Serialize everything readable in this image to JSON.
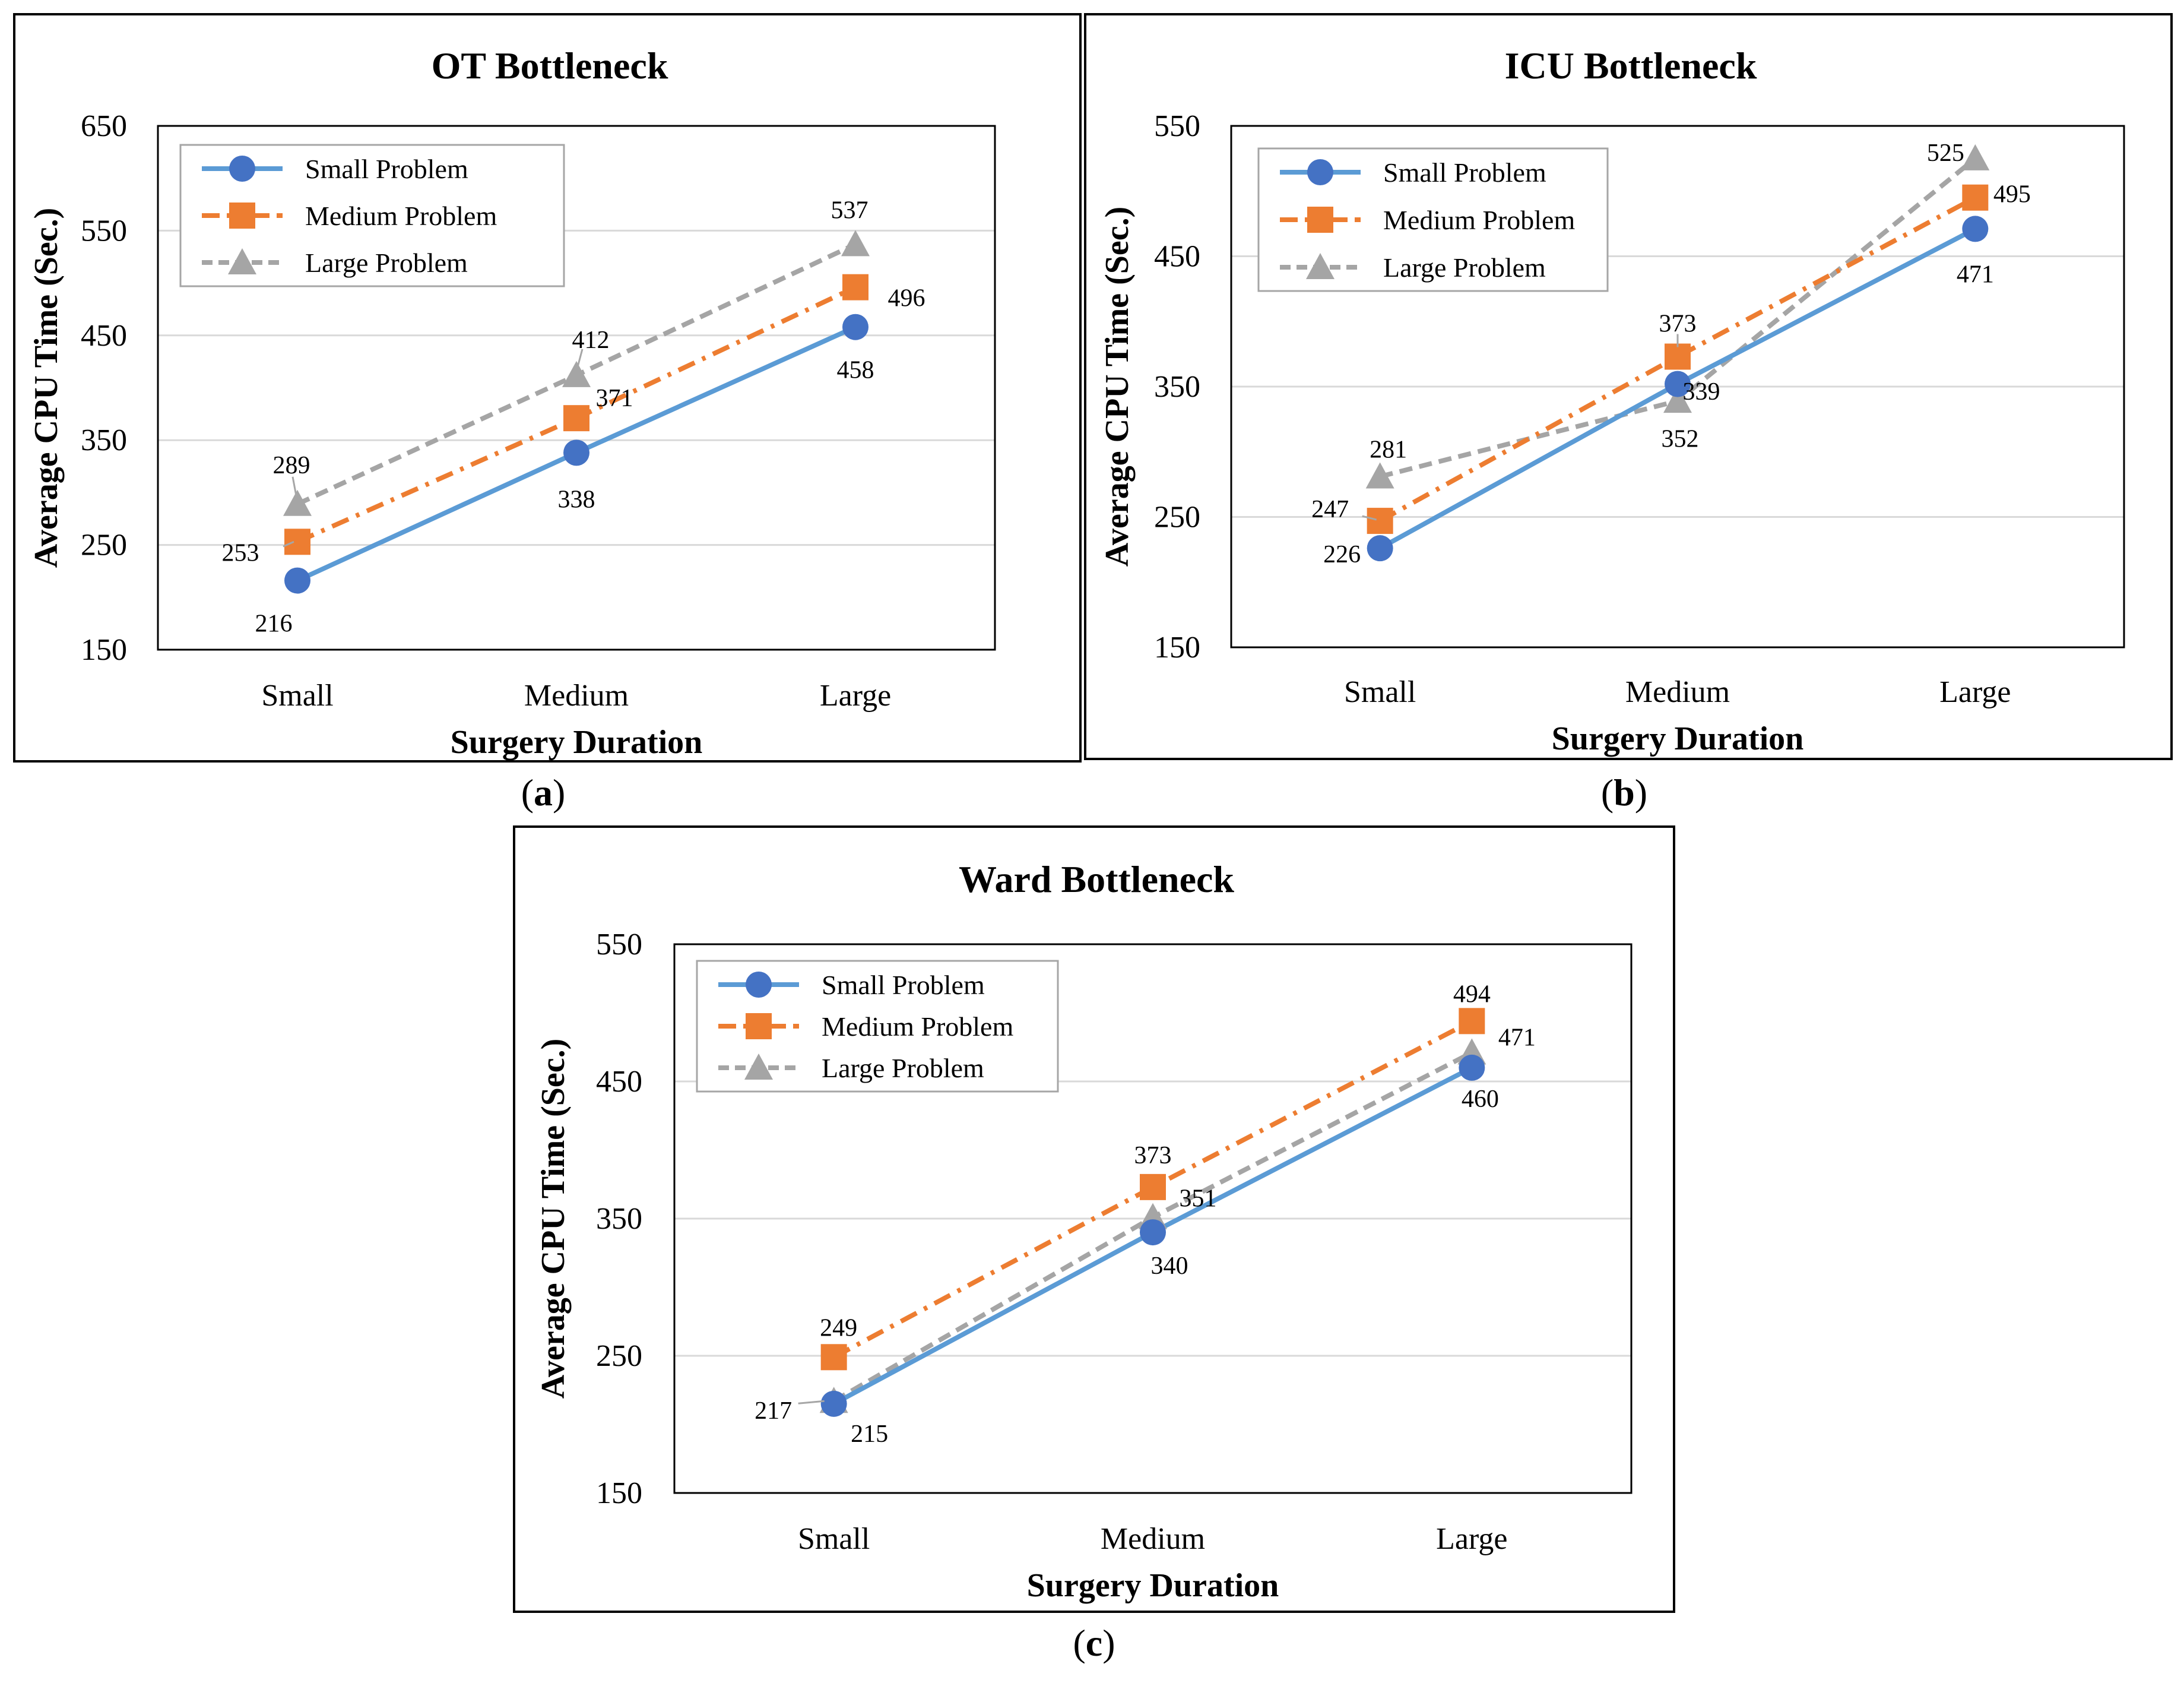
{
  "captions": [
    "(a)",
    "(b)",
    "(c)"
  ],
  "caption_letters": [
    "a",
    "b",
    "c"
  ],
  "colors": {
    "small": "#4472C4",
    "small_line": "#5B9BD5",
    "medium": "#ED7D31",
    "large": "#A5A5A5",
    "grid": "#D9D9D9"
  },
  "chart_data": [
    {
      "type": "line",
      "title": "OT Bottleneck",
      "xlabel": "Surgery Duration",
      "ylabel": "Average CPU Time (Sec.)",
      "categories": [
        "Small",
        "Medium",
        "Large"
      ],
      "ylim": [
        150,
        650
      ],
      "yticks": [
        150,
        250,
        350,
        450,
        550,
        650
      ],
      "grid": true,
      "legend": "top-left",
      "series": [
        {
          "name": "Small Problem",
          "values": [
            216,
            338,
            458
          ]
        },
        {
          "name": "Medium Problem",
          "values": [
            253,
            371,
            496
          ]
        },
        {
          "name": "Large Problem",
          "values": [
            289,
            412,
            537
          ]
        }
      ]
    },
    {
      "type": "line",
      "title": "ICU Bottleneck",
      "xlabel": "Surgery Duration",
      "ylabel": "Average CPU Time (Sec.)",
      "categories": [
        "Small",
        "Medium",
        "Large"
      ],
      "ylim": [
        150,
        550
      ],
      "yticks": [
        150,
        250,
        350,
        450,
        550
      ],
      "grid": true,
      "legend": "top-left",
      "series": [
        {
          "name": "Small Problem",
          "values": [
            226,
            352,
            471
          ]
        },
        {
          "name": "Medium Problem",
          "values": [
            247,
            373,
            495
          ]
        },
        {
          "name": "Large Problem",
          "values": [
            281,
            339,
            525
          ]
        }
      ]
    },
    {
      "type": "line",
      "title": "Ward Bottleneck",
      "xlabel": "Surgery Duration",
      "ylabel": "Average CPU Time (Sec.)",
      "categories": [
        "Small",
        "Medium",
        "Large"
      ],
      "ylim": [
        150,
        550
      ],
      "yticks": [
        150,
        250,
        350,
        450,
        550
      ],
      "grid": true,
      "legend": "top-left",
      "series": [
        {
          "name": "Small Problem",
          "values": [
            215,
            340,
            460
          ]
        },
        {
          "name": "Medium Problem",
          "values": [
            249,
            373,
            494
          ]
        },
        {
          "name": "Large Problem",
          "values": [
            217,
            351,
            471
          ]
        }
      ]
    }
  ]
}
